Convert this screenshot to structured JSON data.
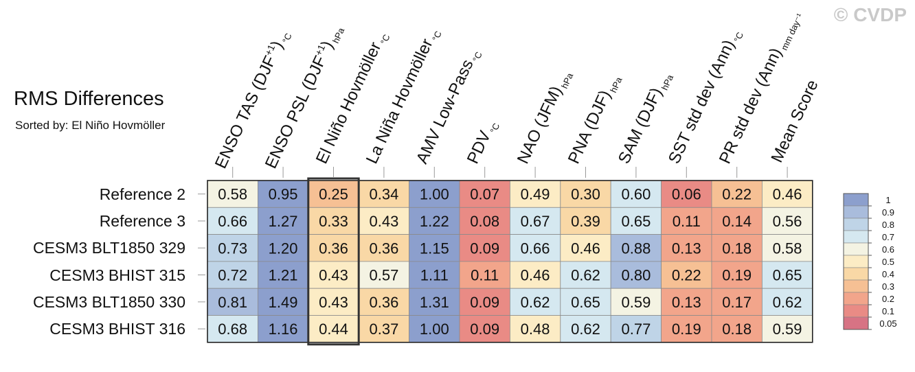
{
  "watermark": "© CVDP",
  "title": "RMS Differences",
  "subtitle": "Sorted by: El Niño Hovmöller",
  "chart_data": {
    "type": "heatmap",
    "columns": [
      {
        "name": "ENSO TAS (DJF",
        "sup": "+1",
        "close": ")",
        "unit": "°C"
      },
      {
        "name": "ENSO PSL (DJF",
        "sup": "+1",
        "close": ")",
        "unit": "hPa"
      },
      {
        "name": "El Niño Hovmöller",
        "sup": "",
        "close": "",
        "unit": "°C"
      },
      {
        "name": "La Niña Hovmöller",
        "sup": "",
        "close": "",
        "unit": "°C"
      },
      {
        "name": "AMV Low-Pass",
        "sup": "",
        "close": "",
        "unit": "°C"
      },
      {
        "name": "PDV",
        "sup": "",
        "close": "",
        "unit": "°C"
      },
      {
        "name": "NAO (JFM)",
        "sup": "",
        "close": "",
        "unit": "hPa"
      },
      {
        "name": "PNA (DJF)",
        "sup": "",
        "close": "",
        "unit": "hPa"
      },
      {
        "name": "SAM (DJF)",
        "sup": "",
        "close": "",
        "unit": "hPa"
      },
      {
        "name": "SST std dev (Ann)",
        "sup": "",
        "close": "",
        "unit": "°C"
      },
      {
        "name": "PR std dev (Ann)",
        "sup": "",
        "close": "",
        "unit": "mm day⁻¹"
      },
      {
        "name": "Mean Score",
        "sup": "",
        "close": "",
        "unit": ""
      }
    ],
    "rows": [
      "Reference 2",
      "Reference 3",
      "CESM3 BLT1850 329",
      "CESM3 BHIST 315",
      "CESM3 BLT1850 330",
      "CESM3 BHIST 316"
    ],
    "values": [
      [
        0.58,
        0.95,
        0.25,
        0.34,
        1.0,
        0.07,
        0.49,
        0.3,
        0.6,
        0.06,
        0.22,
        0.46
      ],
      [
        0.66,
        1.27,
        0.33,
        0.43,
        1.22,
        0.08,
        0.67,
        0.39,
        0.65,
        0.11,
        0.14,
        0.56
      ],
      [
        0.73,
        1.2,
        0.36,
        0.36,
        1.15,
        0.09,
        0.66,
        0.46,
        0.88,
        0.13,
        0.18,
        0.58
      ],
      [
        0.72,
        1.21,
        0.43,
        0.57,
        1.11,
        0.11,
        0.46,
        0.62,
        0.8,
        0.22,
        0.19,
        0.65
      ],
      [
        0.81,
        1.49,
        0.43,
        0.36,
        1.31,
        0.09,
        0.62,
        0.65,
        0.59,
        0.13,
        0.17,
        0.62
      ],
      [
        0.68,
        1.16,
        0.44,
        0.37,
        1.0,
        0.09,
        0.48,
        0.62,
        0.77,
        0.19,
        0.18,
        0.59
      ]
    ],
    "highlighted_column": 2,
    "colorbar": {
      "labels": [
        "1",
        "0.9",
        "0.8",
        "0.7",
        "0.6",
        "0.5",
        "0.4",
        "0.3",
        "0.2",
        "0.1",
        "0.05"
      ],
      "colors": [
        "#8c9fcd",
        "#a9bcdc",
        "#bfd4e7",
        "#d5e8f0",
        "#f4f3e3",
        "#fcecc5",
        "#f9d8a6",
        "#f6c094",
        "#f2a58b",
        "#e98b85",
        "#d77384"
      ]
    }
  }
}
